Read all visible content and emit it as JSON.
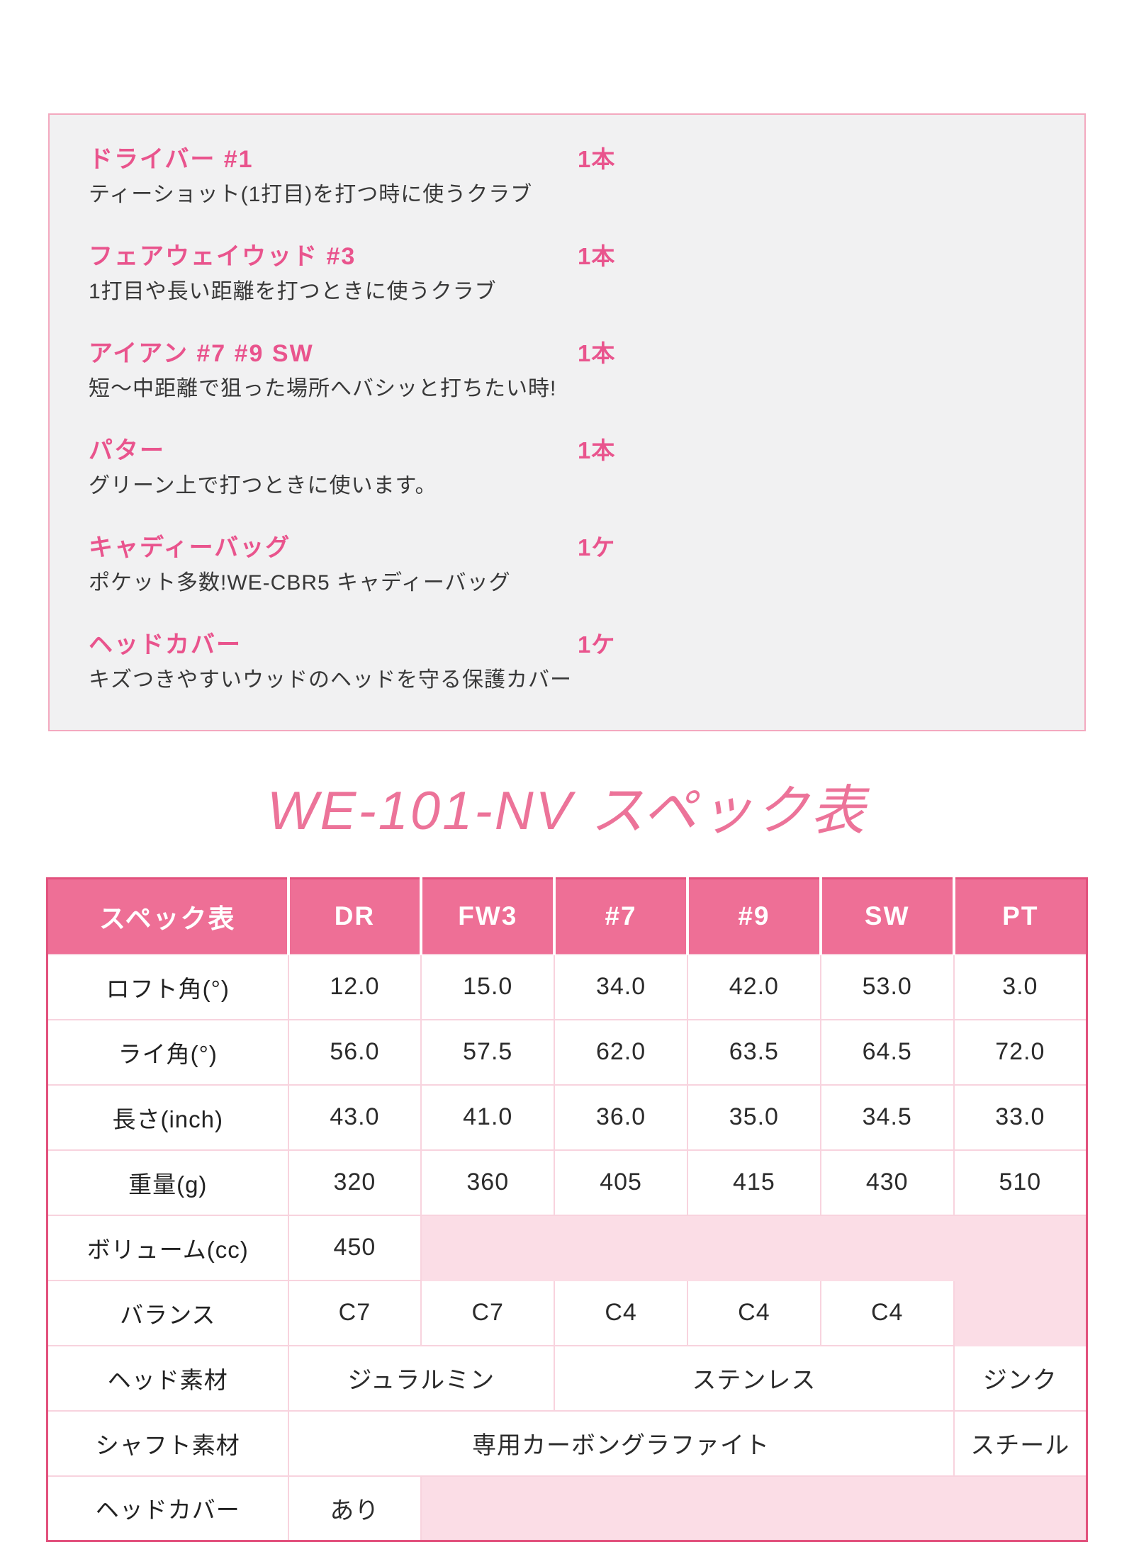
{
  "contents_box": {
    "items": [
      {
        "name": "ドライバー #1",
        "qty": "1本",
        "desc": "ティーショット(1打目)を打つ時に使うクラブ"
      },
      {
        "name": "フェアウェイウッド #3",
        "qty": "1本",
        "desc": "1打目や長い距離を打つときに使うクラブ"
      },
      {
        "name": "アイアン #7 #9 SW",
        "qty": "1本",
        "desc": "短～中距離で狙った場所へバシッと打ちたい時!"
      },
      {
        "name": "パター",
        "qty": "1本",
        "desc": "グリーン上で打つときに使います。"
      },
      {
        "name": "キャディーバッグ",
        "qty": "1ケ",
        "desc": "ポケット多数!WE-CBR5 キャディーバッグ"
      },
      {
        "name": "ヘッドカバー",
        "qty": "1ケ",
        "desc": "キズつきやすいウッドのヘッドを守る保護カバー"
      }
    ]
  },
  "spec_section": {
    "title": "WE-101-NV スペック表",
    "table": {
      "header": [
        "スペック表",
        "DR",
        "FW3",
        "#7",
        "#9",
        "SW",
        "PT"
      ],
      "rows": [
        {
          "label": "ロフト角(°)",
          "cells": [
            {
              "text": "12.0"
            },
            {
              "text": "15.0"
            },
            {
              "text": "34.0"
            },
            {
              "text": "42.0"
            },
            {
              "text": "53.0"
            },
            {
              "text": "3.0"
            }
          ]
        },
        {
          "label": "ライ角(°)",
          "cells": [
            {
              "text": "56.0"
            },
            {
              "text": "57.5"
            },
            {
              "text": "62.0"
            },
            {
              "text": "63.5"
            },
            {
              "text": "64.5"
            },
            {
              "text": "72.0"
            }
          ]
        },
        {
          "label": "長さ(inch)",
          "cells": [
            {
              "text": "43.0"
            },
            {
              "text": "41.0"
            },
            {
              "text": "36.0"
            },
            {
              "text": "35.0"
            },
            {
              "text": "34.5"
            },
            {
              "text": "33.0"
            }
          ]
        },
        {
          "label": "重量(g)",
          "cells": [
            {
              "text": "320"
            },
            {
              "text": "360"
            },
            {
              "text": "405"
            },
            {
              "text": "415"
            },
            {
              "text": "430"
            },
            {
              "text": "510"
            }
          ]
        },
        {
          "label": "ボリューム(cc)",
          "cells": [
            {
              "text": "450"
            },
            {
              "text": "",
              "span": 5,
              "fill": true
            }
          ]
        },
        {
          "label": "バランス",
          "cells": [
            {
              "text": "C7"
            },
            {
              "text": "C7"
            },
            {
              "text": "C4"
            },
            {
              "text": "C4"
            },
            {
              "text": "C4"
            },
            {
              "text": "",
              "fill": true
            }
          ]
        },
        {
          "label": "ヘッド素材",
          "cells": [
            {
              "text": "ジュラルミン",
              "span": 2
            },
            {
              "text": "ステンレス",
              "span": 3
            },
            {
              "text": "ジンク"
            }
          ]
        },
        {
          "label": "シャフト素材",
          "cells": [
            {
              "text": "専用カーボングラファイト",
              "span": 5
            },
            {
              "text": "スチール"
            }
          ]
        },
        {
          "label": "ヘッドカバー",
          "cells": [
            {
              "text": "あり"
            },
            {
              "text": "",
              "span": 5,
              "fill": true
            }
          ]
        }
      ]
    }
  },
  "colors": {
    "accent_pink": "#e9548d",
    "header_pink": "#ee6f96",
    "table_border_pink": "#e2517d",
    "cell_fill_pink": "#fbdde6",
    "grid_line_pink": "#f8d3de",
    "title_pink": "#ec7399",
    "box_background": "#f1f1f2",
    "box_border": "#f3a9bf",
    "body_text": "#383838"
  }
}
